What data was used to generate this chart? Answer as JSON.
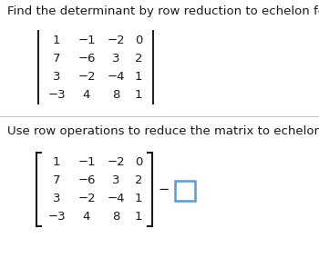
{
  "title1": "Find the determinant by row reduction to echelon form.",
  "title2": "Use row operations to reduce the matrix to echelon form.",
  "matrix_rows": [
    [
      "1",
      "−1",
      "−2",
      "0"
    ],
    [
      "7",
      "−6",
      "3",
      "2"
    ],
    [
      "3",
      "−2",
      "−4",
      "1"
    ],
    [
      "−3",
      "4",
      "8",
      "1"
    ]
  ],
  "bg_color": "#ffffff",
  "text_color": "#1a1a1a",
  "font_size_title": 9.5,
  "font_size_matrix": 9.5,
  "bracket_color": "#1a1a1a",
  "square_color": "#5b9bd5",
  "minus_color": "#1a1a1a"
}
